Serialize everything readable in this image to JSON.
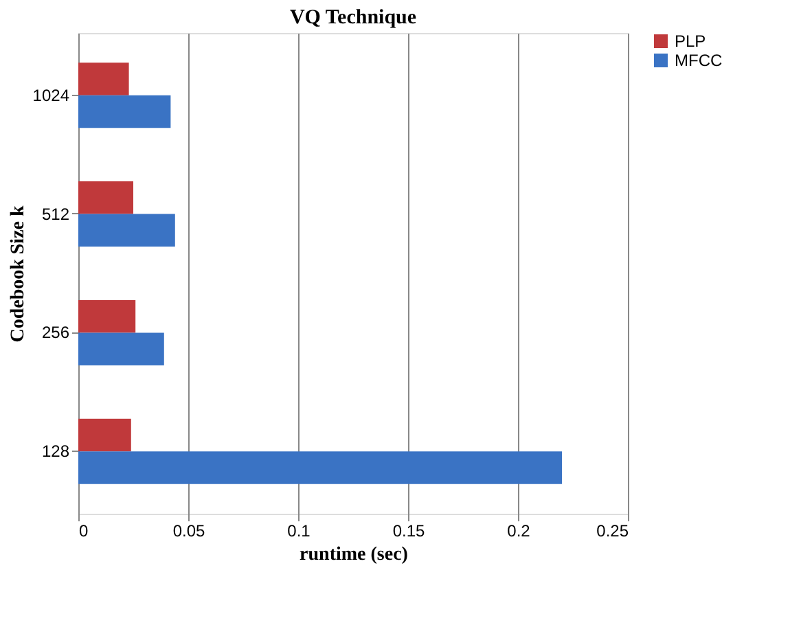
{
  "chart_data": {
    "type": "bar",
    "orientation": "horizontal",
    "title": "VQ Technique",
    "xlabel": "runtime (sec)",
    "ylabel": "Codebook Size k",
    "categories": [
      "1024",
      "512",
      "256",
      "128"
    ],
    "series": [
      {
        "name": "PLP",
        "color": "#c0393b",
        "values": [
          0.023,
          0.025,
          0.026,
          0.024
        ]
      },
      {
        "name": "MFCC",
        "color": "#3a73c4",
        "values": [
          0.042,
          0.044,
          0.039,
          0.22
        ]
      }
    ],
    "xlim": [
      0,
      0.25
    ],
    "xticks": [
      0,
      0.05,
      0.1,
      0.15,
      0.2,
      0.25
    ],
    "grid": "x",
    "legend": "right"
  }
}
